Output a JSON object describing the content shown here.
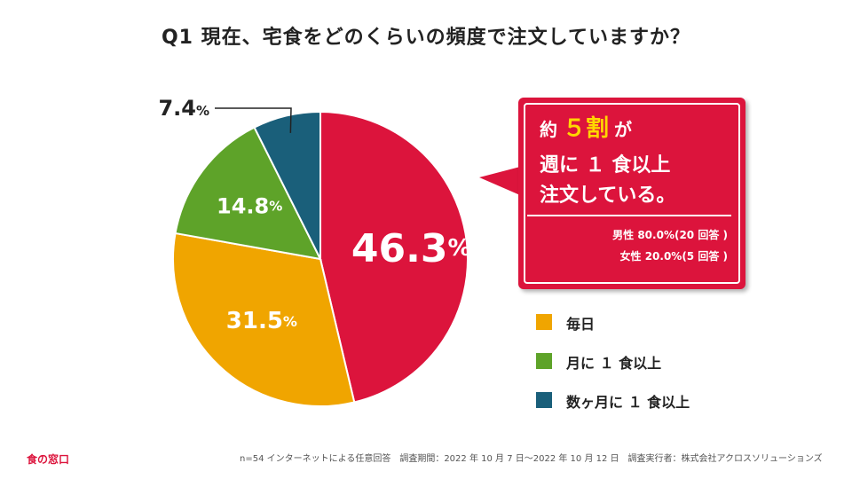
{
  "title": "Q1 現在、宅食をどのくらいの頻度で注文していますか？",
  "chart_data": {
    "type": "pie",
    "title": "Q1 現在、宅食をどのくらいの頻度で注文していますか？",
    "categories": [
      "週に１食以上",
      "毎日",
      "月に１食以上",
      "数ヶ月に１食以上"
    ],
    "values": [
      46.3,
      31.5,
      14.8,
      7.4
    ],
    "value_labels": [
      "46.3",
      "31.5",
      "14.8",
      "7.4"
    ],
    "unit": "%",
    "colors": [
      "#dc143c",
      "#f0a500",
      "#5ea329",
      "#1a5f7a"
    ],
    "start_angle": "top, clockwise"
  },
  "callout": {
    "prefix": "約",
    "highlight": "５割",
    "suffix": "が",
    "line2": "週に １ 食以上",
    "line3": "注文している。",
    "detail_male": "男性 80.0%(20 回答 )",
    "detail_female": "女性 20.0%(5 回答 )"
  },
  "legend": {
    "items": [
      {
        "label": "毎日",
        "color": "#f0a500"
      },
      {
        "label": "月に １ 食以上",
        "color": "#5ea329"
      },
      {
        "label": "数ヶ月に １ 食以上",
        "color": "#1a5f7a"
      }
    ]
  },
  "brand": "食の窓口",
  "footer": "n=54 インターネットによる任意回答　調査期間：2022 年 10 月 7 日～2022 年 10 月 12 日　調査実行者：株式会社アクロスソリューションズ"
}
